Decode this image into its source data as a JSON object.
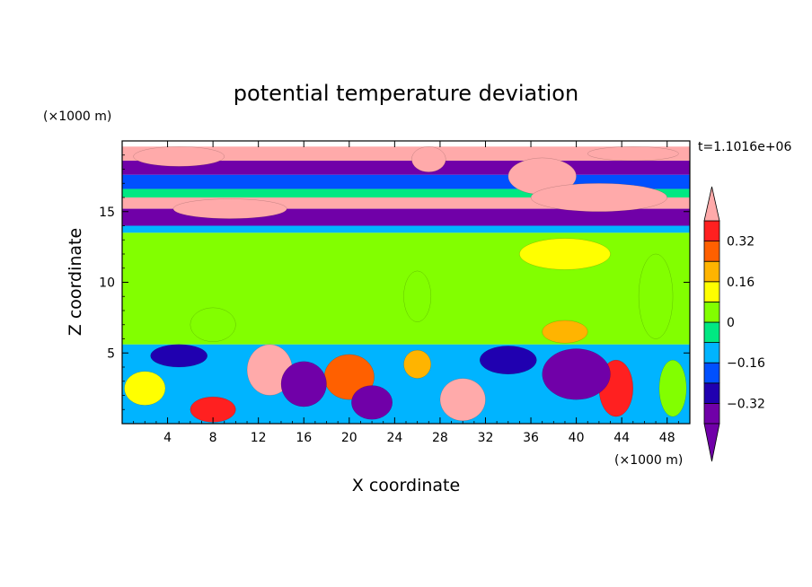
{
  "chart_data": {
    "type": "heatmap",
    "title": "potential temperature deviation",
    "xlabel": "X coordinate",
    "ylabel": "Z coordinate",
    "x_unit_label": "(×1000 m)",
    "y_unit_label": "(×1000 m)",
    "time_label": "t=1.1016e+06",
    "xlim": [
      0,
      50
    ],
    "ylim": [
      0,
      20
    ],
    "x_ticks": [
      4,
      8,
      12,
      16,
      20,
      24,
      28,
      32,
      36,
      40,
      44,
      48
    ],
    "y_ticks": [
      5,
      10,
      15
    ],
    "colorbar": {
      "levels": [
        -0.4,
        -0.32,
        -0.24,
        -0.16,
        -0.08,
        0,
        0.08,
        0.16,
        0.24,
        0.32,
        0.4
      ],
      "labels": [
        "0.32",
        "0.16",
        "0",
        "−0.16",
        "−0.32"
      ],
      "label_values": [
        0.32,
        0.16,
        0,
        -0.16,
        -0.32
      ],
      "colors": [
        "#7000a8",
        "#2000b0",
        "#0050ff",
        "#00b4ff",
        "#00e882",
        "#82ff00",
        "#ffff00",
        "#ffb400",
        "#ff6000",
        "#ff2020"
      ],
      "over_color": "#ffaaaa",
      "under_color": "#7000a8"
    },
    "field_bands": [
      {
        "z": [
          18.6,
          19.6
        ],
        "value": 0.42
      },
      {
        "z": [
          17.6,
          18.6
        ],
        "value": -0.38
      },
      {
        "z": [
          16.6,
          17.6
        ],
        "value": -0.2
      },
      {
        "z": [
          16.0,
          16.6
        ],
        "value": -0.05
      },
      {
        "z": [
          15.2,
          16.0
        ],
        "value": 0.42
      },
      {
        "z": [
          14.0,
          15.2
        ],
        "value": -0.38
      },
      {
        "z": [
          13.5,
          14.0
        ],
        "value": -0.1
      },
      {
        "z": [
          5.6,
          13.5
        ],
        "value": 0.04
      },
      {
        "z": [
          0,
          5.6
        ],
        "value": -0.1
      }
    ],
    "field_blobs": [
      {
        "x": 9.5,
        "z": 15.2,
        "rx": 5,
        "rz": 0.7,
        "value": 0.42
      },
      {
        "x": 5,
        "z": 18.9,
        "rx": 4,
        "rz": 0.7,
        "value": 0.42
      },
      {
        "x": 27,
        "z": 18.7,
        "rx": 1.5,
        "rz": 0.9,
        "value": 0.42
      },
      {
        "x": 37,
        "z": 17.5,
        "rx": 3,
        "rz": 1.3,
        "value": 0.42
      },
      {
        "x": 42,
        "z": 16.0,
        "rx": 6,
        "rz": 1.0,
        "value": 0.42
      },
      {
        "x": 45,
        "z": 19.1,
        "rx": 4,
        "rz": 0.5,
        "value": 0.42
      },
      {
        "x": 39,
        "z": 12.0,
        "rx": 4,
        "rz": 1.1,
        "value": 0.12
      },
      {
        "x": 39,
        "z": 6.5,
        "rx": 2,
        "rz": 0.8,
        "value": 0.16
      },
      {
        "x": 26,
        "z": 9.0,
        "rx": 1.2,
        "rz": 1.8,
        "value": 0.06
      },
      {
        "x": 8,
        "z": 7.0,
        "rx": 2,
        "rz": 1.2,
        "value": 0.06
      },
      {
        "x": 47,
        "z": 9.0,
        "rx": 1.5,
        "rz": 3.0,
        "value": 0.06
      },
      {
        "x": 13,
        "z": 3.8,
        "rx": 2,
        "rz": 1.8,
        "value": 0.42
      },
      {
        "x": 30,
        "z": 1.7,
        "rx": 2,
        "rz": 1.5,
        "value": 0.42
      },
      {
        "x": 20,
        "z": 3.3,
        "rx": 2.2,
        "rz": 1.6,
        "value": 0.3
      },
      {
        "x": 8,
        "z": 1.0,
        "rx": 2,
        "rz": 0.9,
        "value": 0.32
      },
      {
        "x": 43.5,
        "z": 2.5,
        "rx": 1.5,
        "rz": 2.0,
        "value": 0.35
      },
      {
        "x": 16,
        "z": 2.8,
        "rx": 2,
        "rz": 1.6,
        "value": -0.38
      },
      {
        "x": 22,
        "z": 1.5,
        "rx": 1.8,
        "rz": 1.2,
        "value": -0.38
      },
      {
        "x": 40,
        "z": 3.5,
        "rx": 3,
        "rz": 1.8,
        "value": -0.38
      },
      {
        "x": 5,
        "z": 4.8,
        "rx": 2.5,
        "rz": 0.8,
        "value": -0.3
      },
      {
        "x": 34,
        "z": 4.5,
        "rx": 2.5,
        "rz": 1.0,
        "value": -0.25
      },
      {
        "x": 2,
        "z": 2.5,
        "rx": 1.8,
        "rz": 1.2,
        "value": 0.1
      },
      {
        "x": 26,
        "z": 4.2,
        "rx": 1.2,
        "rz": 1.0,
        "value": 0.2
      },
      {
        "x": 48.5,
        "z": 2.5,
        "rx": 1.2,
        "rz": 2.0,
        "value": 0.05
      }
    ]
  }
}
